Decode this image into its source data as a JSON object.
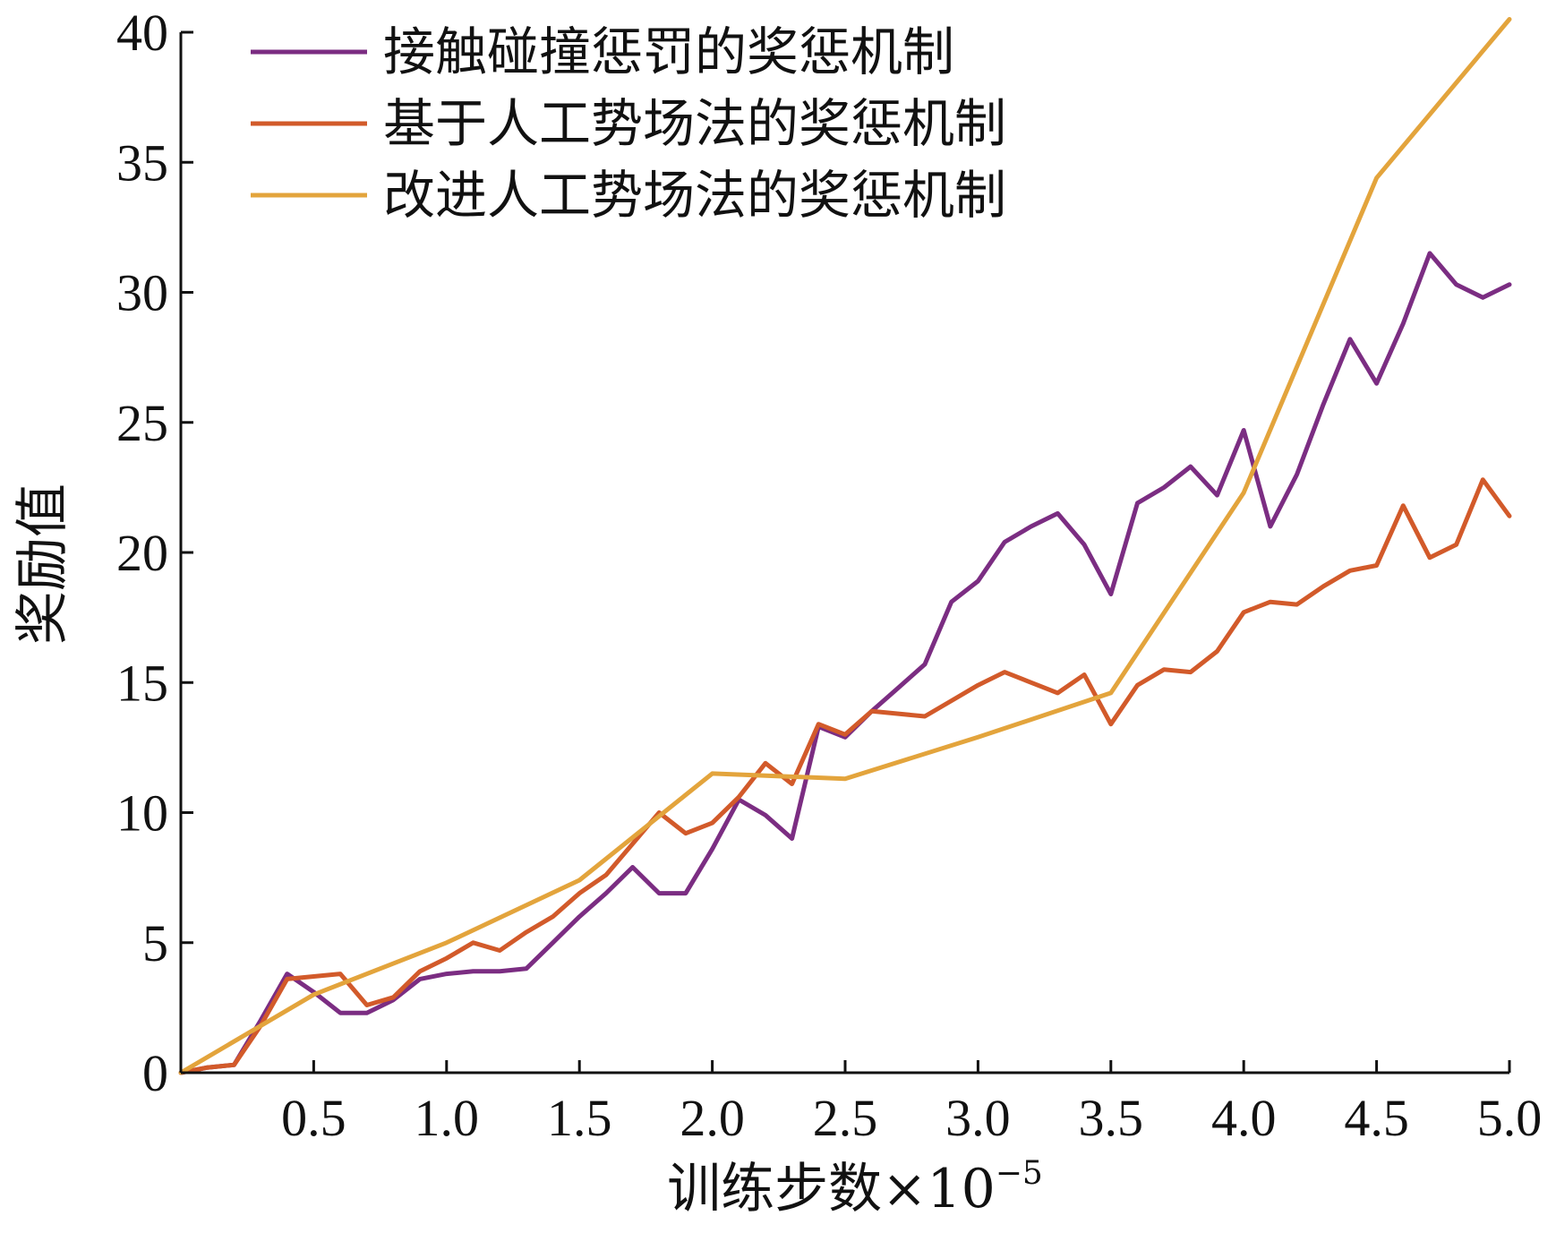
{
  "chart_data": {
    "type": "line",
    "title": "",
    "xlabel": "训练步数×10",
    "xlabel_superscript": "−5",
    "ylabel": "奖励值",
    "xlim": [
      0,
      5.0
    ],
    "ylim": [
      0,
      40
    ],
    "x_ticks": [
      0.5,
      1.0,
      1.5,
      2.0,
      2.5,
      3.0,
      3.5,
      4.0,
      4.5,
      5.0
    ],
    "x_tick_labels": [
      "0.5",
      "1.0",
      "1.5",
      "2.0",
      "2.5",
      "3.0",
      "3.5",
      "4.0",
      "4.5",
      "5.0"
    ],
    "y_ticks": [
      0,
      5,
      10,
      15,
      20,
      25,
      30,
      35,
      40
    ],
    "y_tick_labels": [
      "0",
      "5",
      "10",
      "15",
      "20",
      "25",
      "30",
      "35",
      "40"
    ],
    "grid": false,
    "legend_position": "top-left",
    "series": [
      {
        "name": "接触碰撞惩罚的奖惩机制",
        "color": "#7B2D82",
        "x": [
          0,
          0.1,
          0.2,
          0.3,
          0.4,
          0.5,
          0.6,
          0.7,
          0.8,
          0.9,
          1.0,
          1.1,
          1.2,
          1.3,
          1.4,
          1.5,
          1.6,
          1.7,
          1.8,
          1.9,
          2.0,
          2.1,
          2.2,
          2.3,
          2.4,
          2.5,
          2.6,
          2.7,
          2.8,
          2.9,
          3.0,
          3.1,
          3.2,
          3.3,
          3.4,
          3.5,
          3.6,
          3.7,
          3.8,
          3.9,
          4.0,
          4.1,
          4.2,
          4.3,
          4.4,
          4.5,
          4.6,
          4.7,
          4.8,
          4.9,
          5.0
        ],
        "y": [
          0,
          0.2,
          0.3,
          2.0,
          3.8,
          3.1,
          2.3,
          2.3,
          2.8,
          3.6,
          3.8,
          3.9,
          3.9,
          4.0,
          5.0,
          6.0,
          6.9,
          7.9,
          6.9,
          6.9,
          8.6,
          10.5,
          9.9,
          9.0,
          13.3,
          12.9,
          13.9,
          14.8,
          15.7,
          18.1,
          18.9,
          20.4,
          21.0,
          21.5,
          20.3,
          18.4,
          21.9,
          22.5,
          23.3,
          22.2,
          24.7,
          21.0,
          23.0,
          25.7,
          28.2,
          26.5,
          28.8,
          31.5,
          30.3,
          29.8,
          30.3
        ]
      },
      {
        "name": "基于人工势场法的奖惩机制",
        "color": "#D25A2A",
        "x": [
          0,
          0.1,
          0.2,
          0.3,
          0.4,
          0.5,
          0.6,
          0.7,
          0.8,
          0.9,
          1.0,
          1.1,
          1.2,
          1.3,
          1.4,
          1.5,
          1.6,
          1.7,
          1.8,
          1.9,
          2.0,
          2.1,
          2.2,
          2.3,
          2.4,
          2.5,
          2.6,
          2.7,
          2.8,
          2.9,
          3.0,
          3.1,
          3.2,
          3.3,
          3.4,
          3.5,
          3.6,
          3.7,
          3.8,
          3.9,
          4.0,
          4.1,
          4.2,
          4.3,
          4.4,
          4.5,
          4.6,
          4.7,
          4.8,
          4.9,
          5.0
        ],
        "y": [
          0,
          0.2,
          0.3,
          1.8,
          3.6,
          3.7,
          3.8,
          2.6,
          2.9,
          3.9,
          4.4,
          5.0,
          4.7,
          5.4,
          6.0,
          6.9,
          7.6,
          8.8,
          10.0,
          9.2,
          9.6,
          10.6,
          11.9,
          11.1,
          13.4,
          13.0,
          13.9,
          13.8,
          13.7,
          14.3,
          14.9,
          15.4,
          15.0,
          14.6,
          15.3,
          13.4,
          14.9,
          15.5,
          15.4,
          16.2,
          17.7,
          18.1,
          18.0,
          18.7,
          19.3,
          19.5,
          21.8,
          19.8,
          20.3,
          22.8,
          21.4
        ]
      },
      {
        "name": "改进人工势场法的奖惩机制",
        "color": "#E3A43C",
        "x": [
          0,
          0.5,
          1.0,
          1.5,
          2.0,
          2.5,
          3.0,
          3.5,
          4.0,
          4.5,
          5.0
        ],
        "y": [
          0,
          3.0,
          5.0,
          7.4,
          11.5,
          11.3,
          12.9,
          14.6,
          22.3,
          34.4,
          40.5
        ]
      }
    ]
  }
}
